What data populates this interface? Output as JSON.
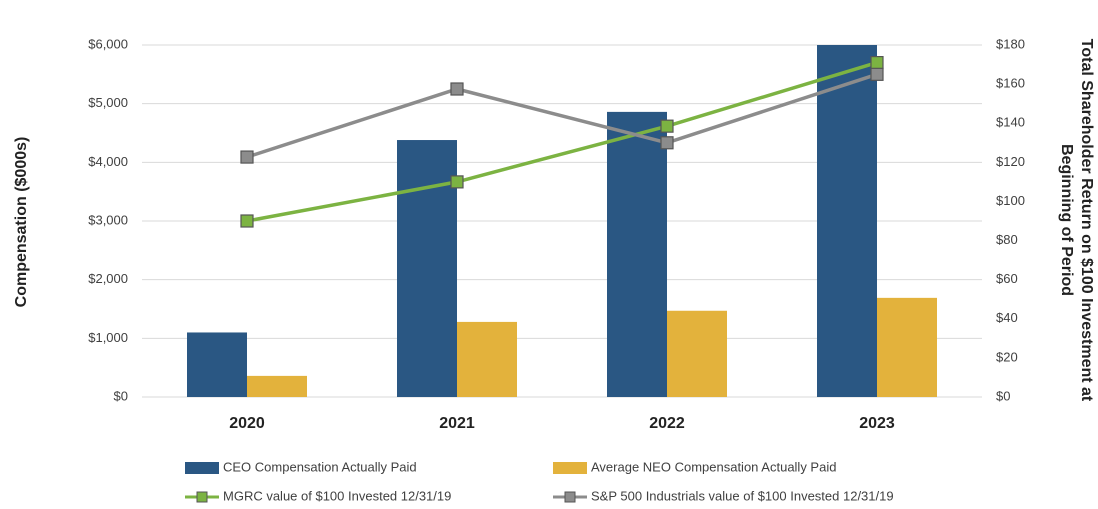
{
  "chart_data": {
    "type": "bar",
    "ylabel": "Compensation ($000s)",
    "y2label": [
      "Total Shareholder Return on $100 Investment at",
      "Beginning of Period"
    ],
    "categories": [
      "2020",
      "2021",
      "2022",
      "2023"
    ],
    "series": [
      {
        "name": "CEO Compensation Actually Paid",
        "color": "#2a5783",
        "type": "bar",
        "values": [
          1100,
          4380,
          4860,
          6000
        ]
      },
      {
        "name": "Average NEO Compensation Actually Paid",
        "color": "#e3b23c",
        "type": "bar",
        "values": [
          360,
          1280,
          1470,
          1690
        ]
      },
      {
        "name": "MGRC value of $100 Invested 12/31/19",
        "color": "#7cb342",
        "type": "line",
        "axis": "y2",
        "values": [
          90,
          110,
          138.5,
          171
        ]
      },
      {
        "name": "S&P 500 Industrials value of $100 Invested 12/31/19",
        "color": "#8c8c8c",
        "type": "line",
        "axis": "y2",
        "values": [
          122.7,
          157.5,
          130,
          165
        ]
      }
    ],
    "ylim": [
      0,
      6000
    ],
    "yticks": [
      {
        "value": 0,
        "label": "$0"
      },
      {
        "value": 1000,
        "label": "$1,000"
      },
      {
        "value": 2000,
        "label": "$2,000"
      },
      {
        "value": 3000,
        "label": "$3,000"
      },
      {
        "value": 4000,
        "label": "$4,000"
      },
      {
        "value": 5000,
        "label": "$5,000"
      },
      {
        "value": 6000,
        "label": "$6,000"
      }
    ],
    "y2lim": [
      0,
      180
    ],
    "y2ticks": [
      {
        "value": 0,
        "label": "$0"
      },
      {
        "value": 20,
        "label": "$20"
      },
      {
        "value": 40,
        "label": "$40"
      },
      {
        "value": 60,
        "label": "$60"
      },
      {
        "value": 80,
        "label": "$80"
      },
      {
        "value": 100,
        "label": "$100"
      },
      {
        "value": 120,
        "label": "$120"
      },
      {
        "value": 140,
        "label": "$140"
      },
      {
        "value": 160,
        "label": "$160"
      },
      {
        "value": 180,
        "label": "$180"
      }
    ],
    "grid": true,
    "legend": "bottom"
  }
}
